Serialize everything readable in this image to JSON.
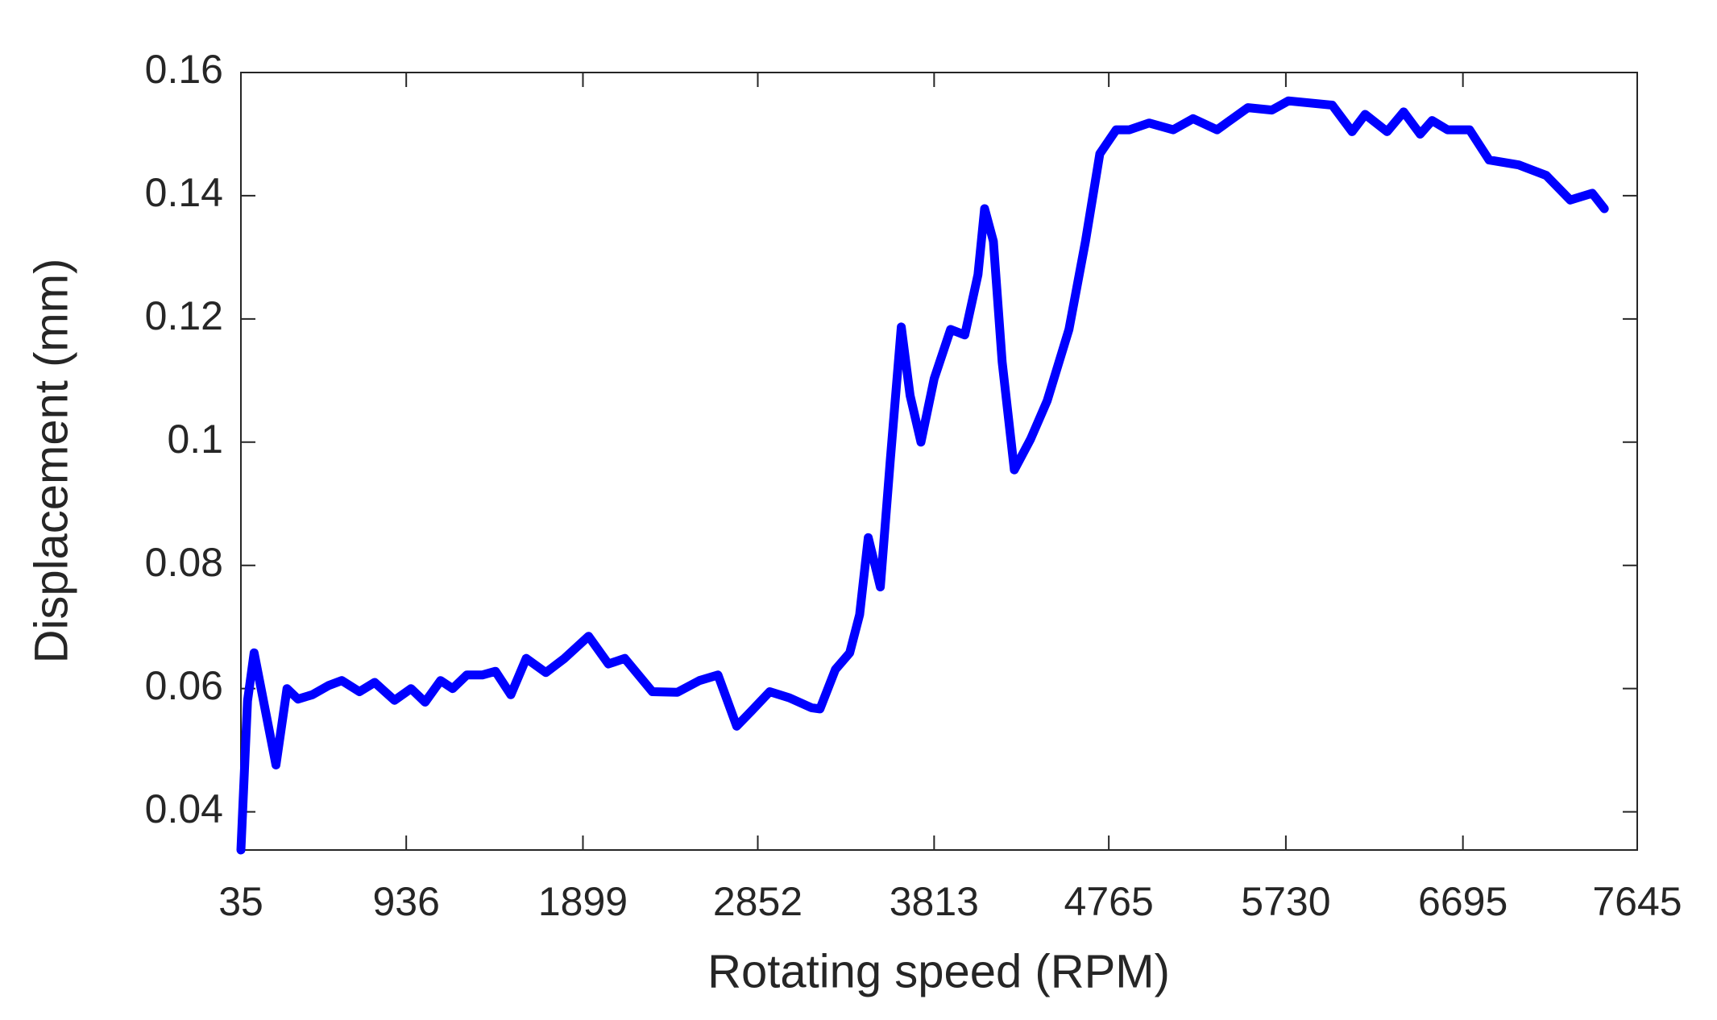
{
  "chart_data": {
    "type": "line",
    "x_label": "Rotating speed (RPM)",
    "y_label": "Displacement (mm)",
    "xlim": [
      35,
      7645
    ],
    "xticks": [
      35,
      936,
      1899,
      2852,
      3813,
      4765,
      5730,
      6695,
      7645
    ],
    "ylim": [
      0.0338,
      0.16
    ],
    "yticks": [
      0.04,
      0.06,
      0.08,
      0.1,
      0.12,
      0.14,
      0.16
    ],
    "series": [
      {
        "color": "#0000ff",
        "x": [
          35,
          71,
          107,
          226,
          286,
          346,
          424,
          513,
          585,
          681,
          764,
          872,
          962,
          1039,
          1123,
          1189,
          1266,
          1350,
          1422,
          1506,
          1590,
          1697,
          1798,
          1930,
          2038,
          2127,
          2277,
          2414,
          2534,
          2635,
          2737,
          2815,
          2917,
          3024,
          3144,
          3191,
          3275,
          3353,
          3407,
          3454,
          3520,
          3574,
          3634,
          3682,
          3741,
          3813,
          3903,
          3980,
          4052,
          4088,
          4136,
          4184,
          4250,
          4339,
          4429,
          4548,
          4638,
          4716,
          4805,
          4877,
          4985,
          5116,
          5224,
          5355,
          5523,
          5654,
          5744,
          5983,
          6091,
          6162,
          6282,
          6372,
          6462,
          6527,
          6611,
          6731,
          6838,
          6999,
          7149,
          7280,
          7400,
          7466
        ],
        "values": [
          0.0338,
          0.058,
          0.0658,
          0.0476,
          0.06,
          0.0583,
          0.059,
          0.0605,
          0.0613,
          0.0595,
          0.061,
          0.0581,
          0.06,
          0.0578,
          0.0613,
          0.06,
          0.0622,
          0.0622,
          0.0628,
          0.059,
          0.0649,
          0.0626,
          0.0649,
          0.0685,
          0.064,
          0.0649,
          0.0595,
          0.0594,
          0.0613,
          0.0622,
          0.0539,
          0.0563,
          0.0595,
          0.0585,
          0.0569,
          0.0567,
          0.0631,
          0.0658,
          0.072,
          0.0845,
          0.0765,
          0.097,
          0.1187,
          0.1076,
          0.1,
          0.1103,
          0.1183,
          0.1174,
          0.1272,
          0.1379,
          0.1326,
          0.113,
          0.0955,
          0.1005,
          0.1067,
          0.1183,
          0.1326,
          0.1468,
          0.1507,
          0.1507,
          0.1518,
          0.1507,
          0.1525,
          0.1507,
          0.1543,
          0.1539,
          0.1554,
          0.1547,
          0.1504,
          0.1532,
          0.1504,
          0.1536,
          0.15,
          0.1522,
          0.1507,
          0.1507,
          0.1458,
          0.145,
          0.1433,
          0.1393,
          0.1404,
          0.1379
        ]
      }
    ]
  }
}
